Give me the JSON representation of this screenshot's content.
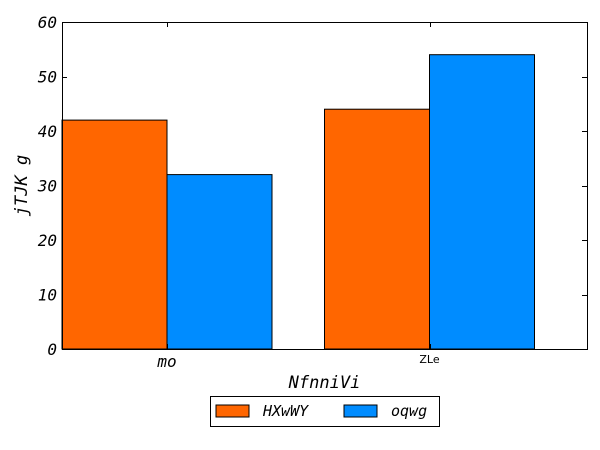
{
  "chart_data": {
    "type": "bar",
    "categories": [
      "mo",
      "ZLe"
    ],
    "series": [
      {
        "name": "HXwWY",
        "values": [
          42,
          44
        ],
        "color": "#ff6600"
      },
      {
        "name": "oqwg",
        "values": [
          32,
          54
        ],
        "color": "#008cff"
      }
    ],
    "xlabel": "NfnniVi",
    "ylabel": "jTJK g",
    "ylim": [
      0,
      60
    ],
    "yticks": [
      0,
      10,
      20,
      30,
      40,
      50,
      60
    ],
    "grid": false,
    "legend_position": "below"
  }
}
